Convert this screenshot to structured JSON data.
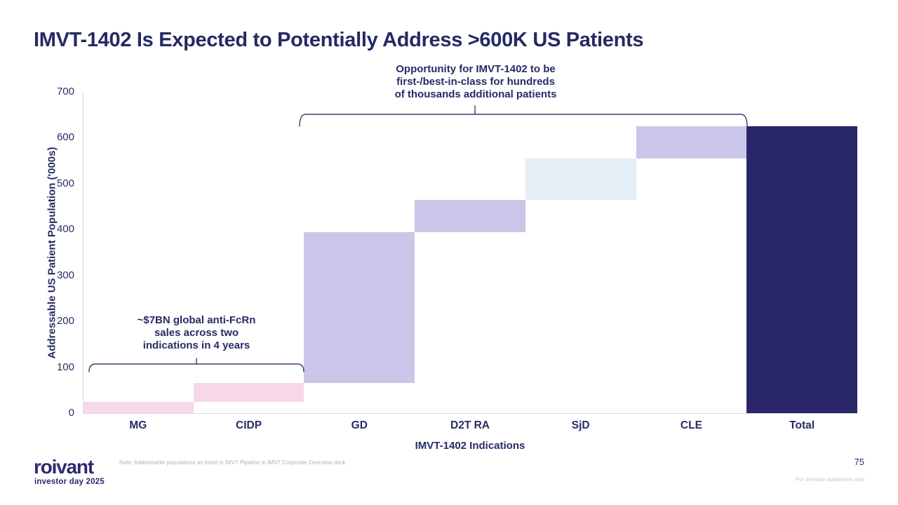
{
  "slide": {
    "title": "IMVT-1402 Is Expected to Potentially Address >600K US Patients",
    "page_number": "75",
    "footer_note": "Note: Addressable populations as listed in IMVT Pipeline in IMVT Corporate Overview deck",
    "audience_note": "For investor audiences only",
    "logo": {
      "brand": "roivant",
      "event": "investor day 2025"
    }
  },
  "annotations": {
    "left_bracket_label": "~$7BN global anti-FcRn\nsales across two\nindications in 4 years",
    "top_bracket_label": "Opportunity for IMVT-1402 to be\nfirst-/best-in-class for hundreds\nof thousands additional patients"
  },
  "colors": {
    "title_navy": "#232a63",
    "pink": "#f8d8e8",
    "lavender": "#c9c6ea",
    "light_blue": "#e5edf6",
    "dark_navy": "#29266a",
    "axis_gray": "#d9d9d9",
    "bracket_navy": "#3f3f63"
  },
  "chart_data": {
    "type": "bar",
    "subtype": "waterfall",
    "title": "IMVT-1402 Is Expected to Potentially Address >600K US Patients",
    "xlabel": "IMVT-1402 Indications",
    "ylabel": "Addressable US Patient Population ('000s)",
    "ylim": [
      0,
      700
    ],
    "yticks": [
      0,
      100,
      200,
      300,
      400,
      500,
      600,
      700
    ],
    "grid": false,
    "legend": false,
    "categories": [
      "MG",
      "CIDP",
      "GD",
      "D2T RA",
      "SjD",
      "CLE",
      "Total"
    ],
    "segments": [
      {
        "label": "MG",
        "start": 0,
        "end": 25,
        "value": 25,
        "color": "#f8d8e8"
      },
      {
        "label": "CIDP",
        "start": 25,
        "end": 65,
        "value": 40,
        "color": "#f8d8e8"
      },
      {
        "label": "GD",
        "start": 65,
        "end": 395,
        "value": 330,
        "color": "#c9c6ea"
      },
      {
        "label": "D2T RA",
        "start": 395,
        "end": 465,
        "value": 70,
        "color": "#c9c6ea"
      },
      {
        "label": "SjD",
        "start": 465,
        "end": 555,
        "value": 90,
        "color": "#e5edf6"
      },
      {
        "label": "CLE",
        "start": 555,
        "end": 625,
        "value": 70,
        "color": "#c9c6ea"
      },
      {
        "label": "Total",
        "start": 0,
        "end": 625,
        "value": 625,
        "color": "#29266a"
      }
    ]
  }
}
